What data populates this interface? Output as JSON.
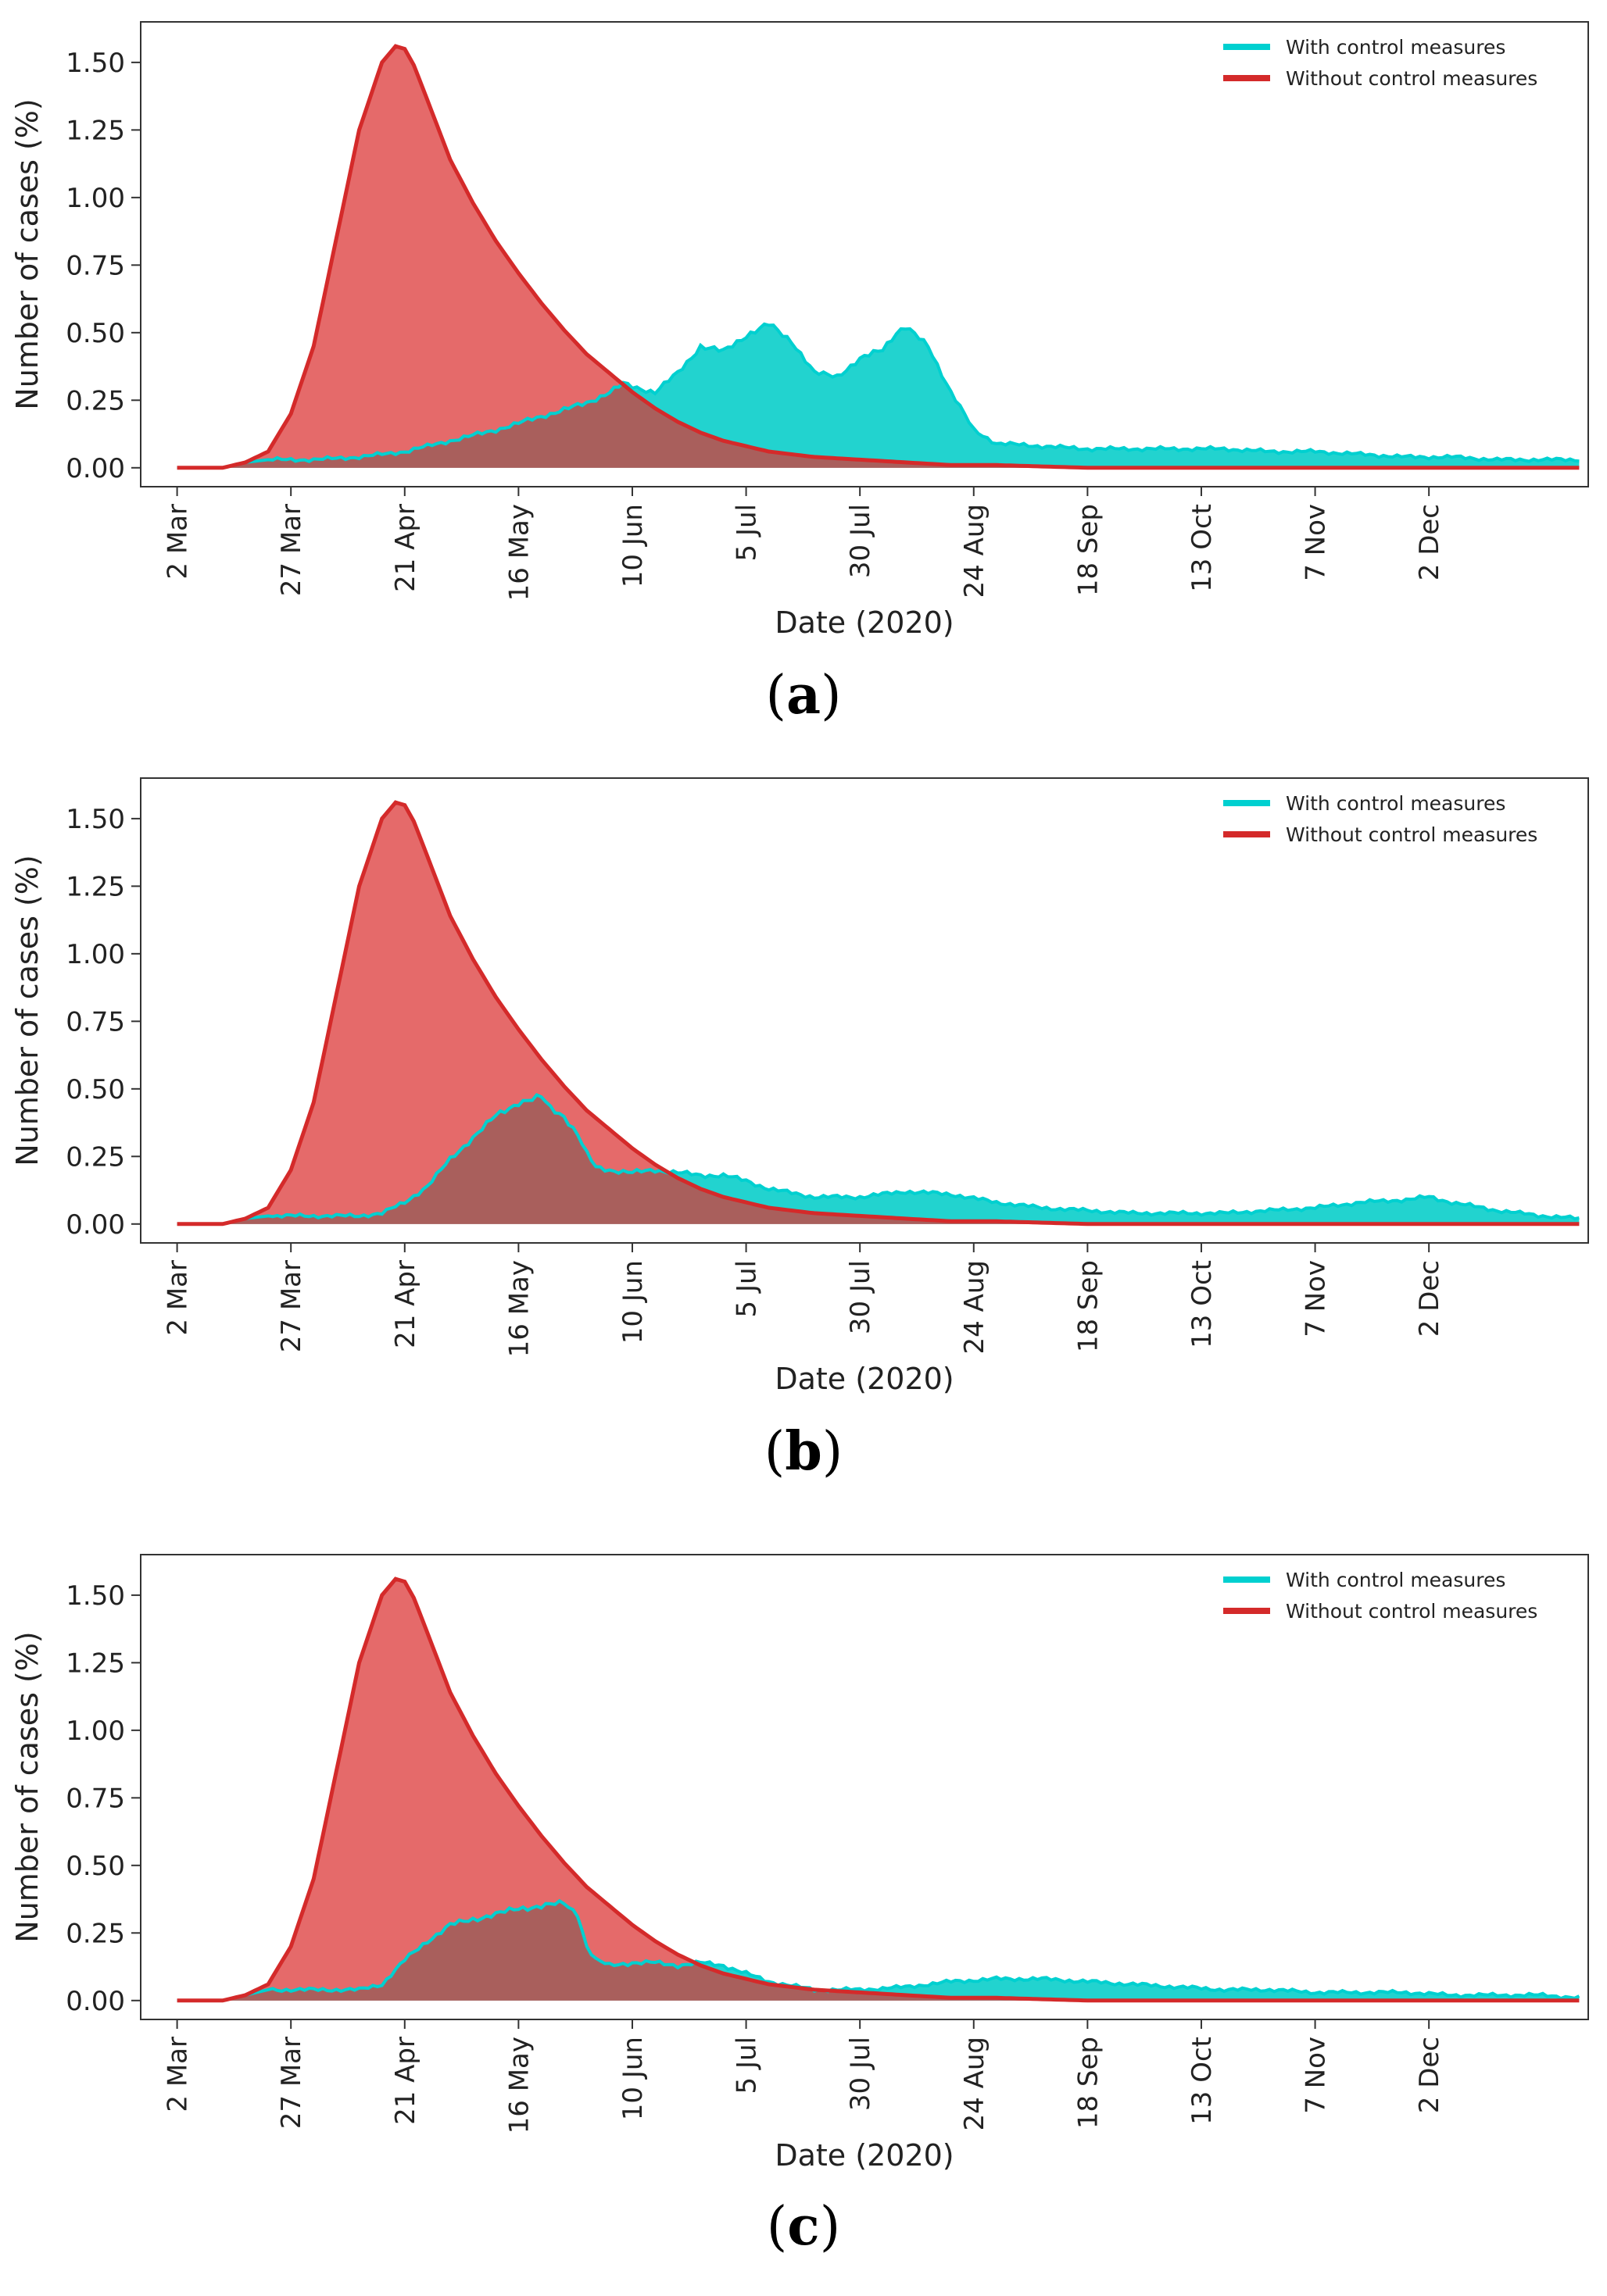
{
  "colors": {
    "with_line": "#00d0d0",
    "with_fill": "#22d3cf",
    "without_line": "#d42a2a",
    "without_fill": "#e56a6a",
    "overlap_fill": "#a95f5c",
    "axis": "#333333"
  },
  "x_ticks": [
    "2 Mar",
    "27 Mar",
    "21 Apr",
    "16 May",
    "10 Jun",
    "5 Jul",
    "30 Jul",
    "24 Aug",
    "18 Sep",
    "13 Oct",
    "7 Nov",
    "2 Dec"
  ],
  "chart_data": [
    {
      "panel": "a",
      "caption_letter": "a",
      "type": "area",
      "title": "",
      "xlabel": "Date (2020)",
      "ylabel": "Number of cases (%)",
      "x_units": "days since 2 Mar 2020",
      "xlim": [
        -8,
        310
      ],
      "ylim": [
        -0.07,
        1.65
      ],
      "y_ticks": [
        "0.00",
        "0.25",
        "0.50",
        "0.75",
        "1.00",
        "1.25",
        "1.50"
      ],
      "legend": {
        "placement": "top-right",
        "entries": [
          "With control measures",
          "Without control measures"
        ]
      },
      "series": [
        {
          "name": "With control measures",
          "x": [
            0,
            10,
            15,
            20,
            30,
            40,
            50,
            60,
            70,
            80,
            90,
            95,
            98,
            100,
            105,
            110,
            115,
            120,
            125,
            130,
            135,
            140,
            145,
            150,
            155,
            158,
            160,
            165,
            170,
            175,
            180,
            190,
            200,
            210,
            220,
            230,
            240,
            250,
            260,
            270,
            280,
            290,
            300,
            308
          ],
          "y": [
            0.0,
            0.0,
            0.02,
            0.03,
            0.03,
            0.04,
            0.06,
            0.1,
            0.14,
            0.19,
            0.24,
            0.28,
            0.31,
            0.3,
            0.28,
            0.35,
            0.45,
            0.43,
            0.49,
            0.53,
            0.47,
            0.35,
            0.34,
            0.4,
            0.44,
            0.5,
            0.52,
            0.45,
            0.28,
            0.14,
            0.09,
            0.08,
            0.07,
            0.07,
            0.07,
            0.07,
            0.06,
            0.06,
            0.05,
            0.04,
            0.04,
            0.03,
            0.03,
            0.03
          ]
        },
        {
          "name": "Without control measures",
          "x": [
            0,
            10,
            15,
            20,
            25,
            30,
            35,
            40,
            45,
            48,
            50,
            52,
            55,
            60,
            65,
            70,
            75,
            80,
            85,
            90,
            95,
            100,
            105,
            110,
            115,
            120,
            125,
            130,
            140,
            150,
            160,
            170,
            180,
            200,
            220,
            250,
            280,
            308
          ],
          "y": [
            0.0,
            0.0,
            0.02,
            0.06,
            0.2,
            0.45,
            0.85,
            1.25,
            1.5,
            1.56,
            1.55,
            1.49,
            1.36,
            1.14,
            0.98,
            0.84,
            0.72,
            0.61,
            0.51,
            0.42,
            0.35,
            0.28,
            0.22,
            0.17,
            0.13,
            0.1,
            0.08,
            0.06,
            0.04,
            0.03,
            0.02,
            0.01,
            0.01,
            0.0,
            0.0,
            0.0,
            0.0,
            0.0
          ]
        }
      ]
    },
    {
      "panel": "b",
      "caption_letter": "b",
      "type": "area",
      "title": "",
      "xlabel": "Date (2020)",
      "ylabel": "Number of cases (%)",
      "x_units": "days since 2 Mar 2020",
      "xlim": [
        -8,
        310
      ],
      "ylim": [
        -0.07,
        1.65
      ],
      "y_ticks": [
        "0.00",
        "0.25",
        "0.50",
        "0.75",
        "1.00",
        "1.25",
        "1.50"
      ],
      "legend": {
        "placement": "top-right",
        "entries": [
          "With control measures",
          "Without control measures"
        ]
      },
      "series": [
        {
          "name": "With control measures",
          "x": [
            0,
            10,
            15,
            20,
            30,
            40,
            45,
            50,
            55,
            60,
            65,
            70,
            75,
            78,
            80,
            82,
            85,
            88,
            90,
            92,
            95,
            100,
            105,
            110,
            115,
            120,
            125,
            130,
            140,
            150,
            160,
            170,
            180,
            190,
            200,
            210,
            220,
            230,
            240,
            250,
            260,
            270,
            275,
            280,
            290,
            300,
            308
          ],
          "y": [
            0.0,
            0.0,
            0.02,
            0.03,
            0.03,
            0.03,
            0.04,
            0.08,
            0.14,
            0.24,
            0.32,
            0.4,
            0.45,
            0.46,
            0.47,
            0.43,
            0.4,
            0.33,
            0.26,
            0.21,
            0.2,
            0.19,
            0.2,
            0.19,
            0.18,
            0.18,
            0.16,
            0.13,
            0.1,
            0.1,
            0.12,
            0.11,
            0.08,
            0.06,
            0.05,
            0.04,
            0.04,
            0.04,
            0.05,
            0.06,
            0.08,
            0.09,
            0.1,
            0.08,
            0.05,
            0.03,
            0.02
          ]
        },
        {
          "name": "Without control measures",
          "x": [
            0,
            10,
            15,
            20,
            25,
            30,
            35,
            40,
            45,
            48,
            50,
            52,
            55,
            60,
            65,
            70,
            75,
            80,
            85,
            90,
            95,
            100,
            105,
            110,
            115,
            120,
            125,
            130,
            140,
            150,
            160,
            170,
            180,
            200,
            220,
            250,
            280,
            308
          ],
          "y": [
            0.0,
            0.0,
            0.02,
            0.06,
            0.2,
            0.45,
            0.85,
            1.25,
            1.5,
            1.56,
            1.55,
            1.49,
            1.36,
            1.14,
            0.98,
            0.84,
            0.72,
            0.61,
            0.51,
            0.42,
            0.35,
            0.28,
            0.22,
            0.17,
            0.13,
            0.1,
            0.08,
            0.06,
            0.04,
            0.03,
            0.02,
            0.01,
            0.01,
            0.0,
            0.0,
            0.0,
            0.0,
            0.0
          ]
        }
      ]
    },
    {
      "panel": "c",
      "caption_letter": "c",
      "type": "area",
      "title": "",
      "xlabel": "Date (2020)",
      "ylabel": "Number of cases (%)",
      "x_units": "days since 2 Mar 2020",
      "xlim": [
        -8,
        310
      ],
      "ylim": [
        -0.07,
        1.65
      ],
      "y_ticks": [
        "0.00",
        "0.25",
        "0.50",
        "0.75",
        "1.00",
        "1.25",
        "1.50"
      ],
      "legend": {
        "placement": "top-right",
        "entries": [
          "With control measures",
          "Without control measures"
        ]
      },
      "series": [
        {
          "name": "With control measures",
          "x": [
            0,
            10,
            15,
            20,
            30,
            40,
            45,
            50,
            55,
            60,
            65,
            70,
            75,
            80,
            85,
            88,
            90,
            92,
            95,
            100,
            105,
            110,
            115,
            120,
            125,
            130,
            140,
            150,
            160,
            170,
            180,
            190,
            200,
            210,
            220,
            230,
            240,
            250,
            260,
            270,
            280,
            290,
            300,
            308
          ],
          "y": [
            0.0,
            0.0,
            0.02,
            0.04,
            0.04,
            0.04,
            0.06,
            0.15,
            0.22,
            0.28,
            0.3,
            0.32,
            0.34,
            0.35,
            0.36,
            0.32,
            0.2,
            0.15,
            0.13,
            0.14,
            0.14,
            0.13,
            0.14,
            0.13,
            0.1,
            0.07,
            0.04,
            0.04,
            0.05,
            0.07,
            0.08,
            0.08,
            0.07,
            0.06,
            0.05,
            0.04,
            0.04,
            0.03,
            0.03,
            0.03,
            0.02,
            0.02,
            0.02,
            0.01
          ]
        },
        {
          "name": "Without control measures",
          "x": [
            0,
            10,
            15,
            20,
            25,
            30,
            35,
            40,
            45,
            48,
            50,
            52,
            55,
            60,
            65,
            70,
            75,
            80,
            85,
            90,
            95,
            100,
            105,
            110,
            115,
            120,
            125,
            130,
            140,
            150,
            160,
            170,
            180,
            200,
            220,
            250,
            280,
            308
          ],
          "y": [
            0.0,
            0.0,
            0.02,
            0.06,
            0.2,
            0.45,
            0.85,
            1.25,
            1.5,
            1.56,
            1.55,
            1.49,
            1.36,
            1.14,
            0.98,
            0.84,
            0.72,
            0.61,
            0.51,
            0.42,
            0.35,
            0.28,
            0.22,
            0.17,
            0.13,
            0.1,
            0.08,
            0.06,
            0.04,
            0.03,
            0.02,
            0.01,
            0.01,
            0.0,
            0.0,
            0.0,
            0.0,
            0.0
          ]
        }
      ]
    }
  ]
}
